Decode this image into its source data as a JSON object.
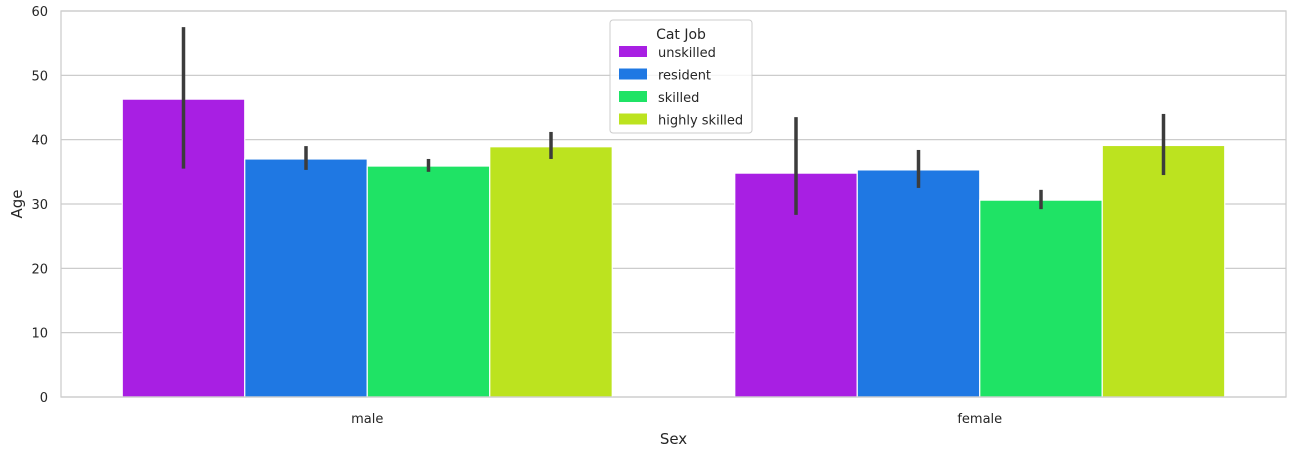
{
  "chart_data": {
    "type": "bar",
    "categories": [
      "male",
      "female"
    ],
    "xlabel": "Sex",
    "ylabel": "Age",
    "ylim": [
      0,
      60
    ],
    "yticks": [
      0,
      10,
      20,
      30,
      40,
      50,
      60
    ],
    "grid": true,
    "legend": {
      "title": "Cat Job",
      "placement": "top-center"
    },
    "series": [
      {
        "name": "unskilled",
        "color": "#a81fe3",
        "values": [
          46.3,
          34.8
        ],
        "ci": [
          [
            35.5,
            57.5
          ],
          [
            28.3,
            43.5
          ]
        ]
      },
      {
        "name": "resident",
        "color": "#1f78e3",
        "values": [
          37.0,
          35.3
        ],
        "ci": [
          [
            35.3,
            39.0
          ],
          [
            32.5,
            38.4
          ]
        ]
      },
      {
        "name": "skilled",
        "color": "#1fe365",
        "values": [
          35.9,
          30.6
        ],
        "ci": [
          [
            35.0,
            37.0
          ],
          [
            29.2,
            32.2
          ]
        ]
      },
      {
        "name": "highly skilled",
        "color": "#bce31f",
        "values": [
          38.9,
          39.1
        ],
        "ci": [
          [
            37.0,
            41.2
          ],
          [
            34.5,
            44.0
          ]
        ]
      }
    ]
  }
}
